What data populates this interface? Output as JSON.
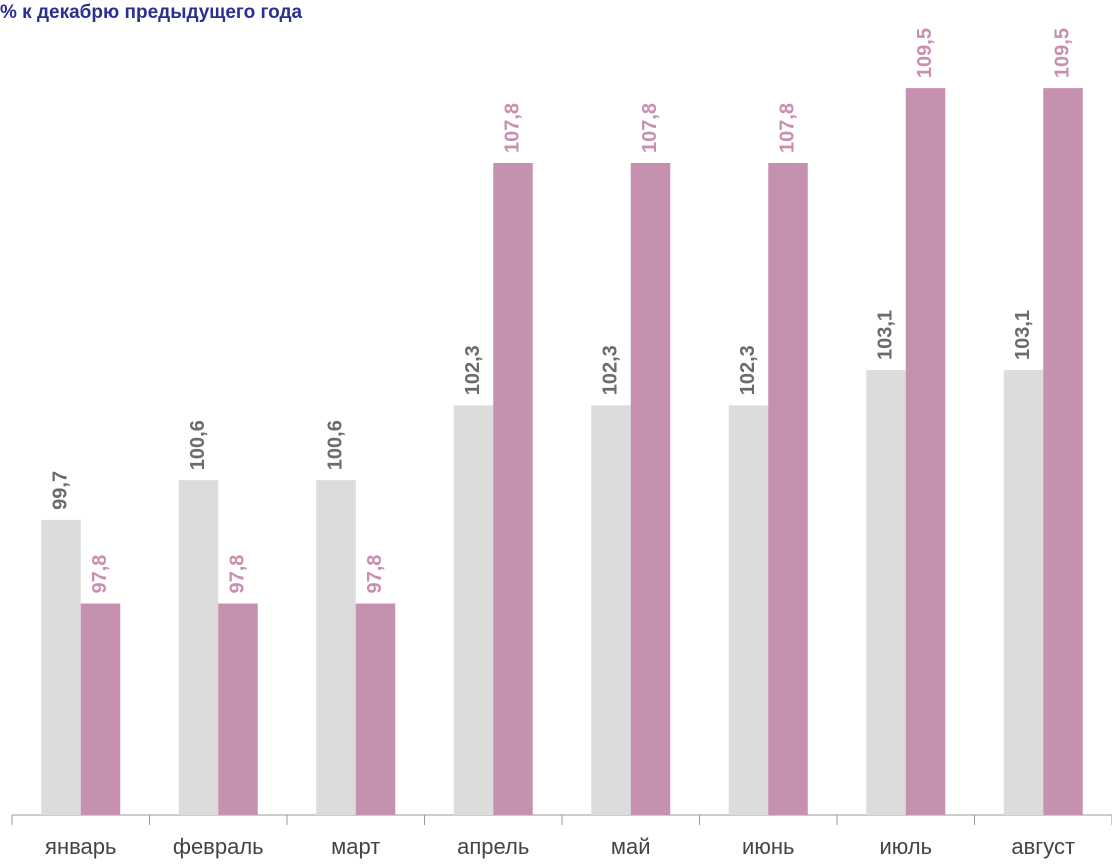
{
  "chart_data": {
    "type": "bar",
    "title": "% к декабрю предыдущего года",
    "categories": [
      "январь",
      "февраль",
      "март",
      "апрель",
      "май",
      "июнь",
      "июль",
      "август"
    ],
    "series": [
      {
        "color": "#dcdcdc",
        "label_color": "#6b6b6b",
        "values": [
          99.7,
          100.6,
          100.6,
          102.3,
          102.3,
          102.3,
          103.1,
          103.1
        ],
        "value_labels": [
          "99,7",
          "100,6",
          "100,6",
          "102,3",
          "102,3",
          "102,3",
          "103,1",
          "103,1"
        ]
      },
      {
        "color": "#c690b0",
        "label_color": "#c88fb0",
        "values": [
          97.8,
          97.8,
          97.8,
          107.8,
          107.8,
          107.8,
          109.5,
          109.5
        ],
        "value_labels": [
          "97,8",
          "97,8",
          "97,8",
          "107,8",
          "107,8",
          "107,8",
          "109,5",
          "109,5"
        ]
      }
    ],
    "ylim": [
      93,
      111.5
    ]
  }
}
